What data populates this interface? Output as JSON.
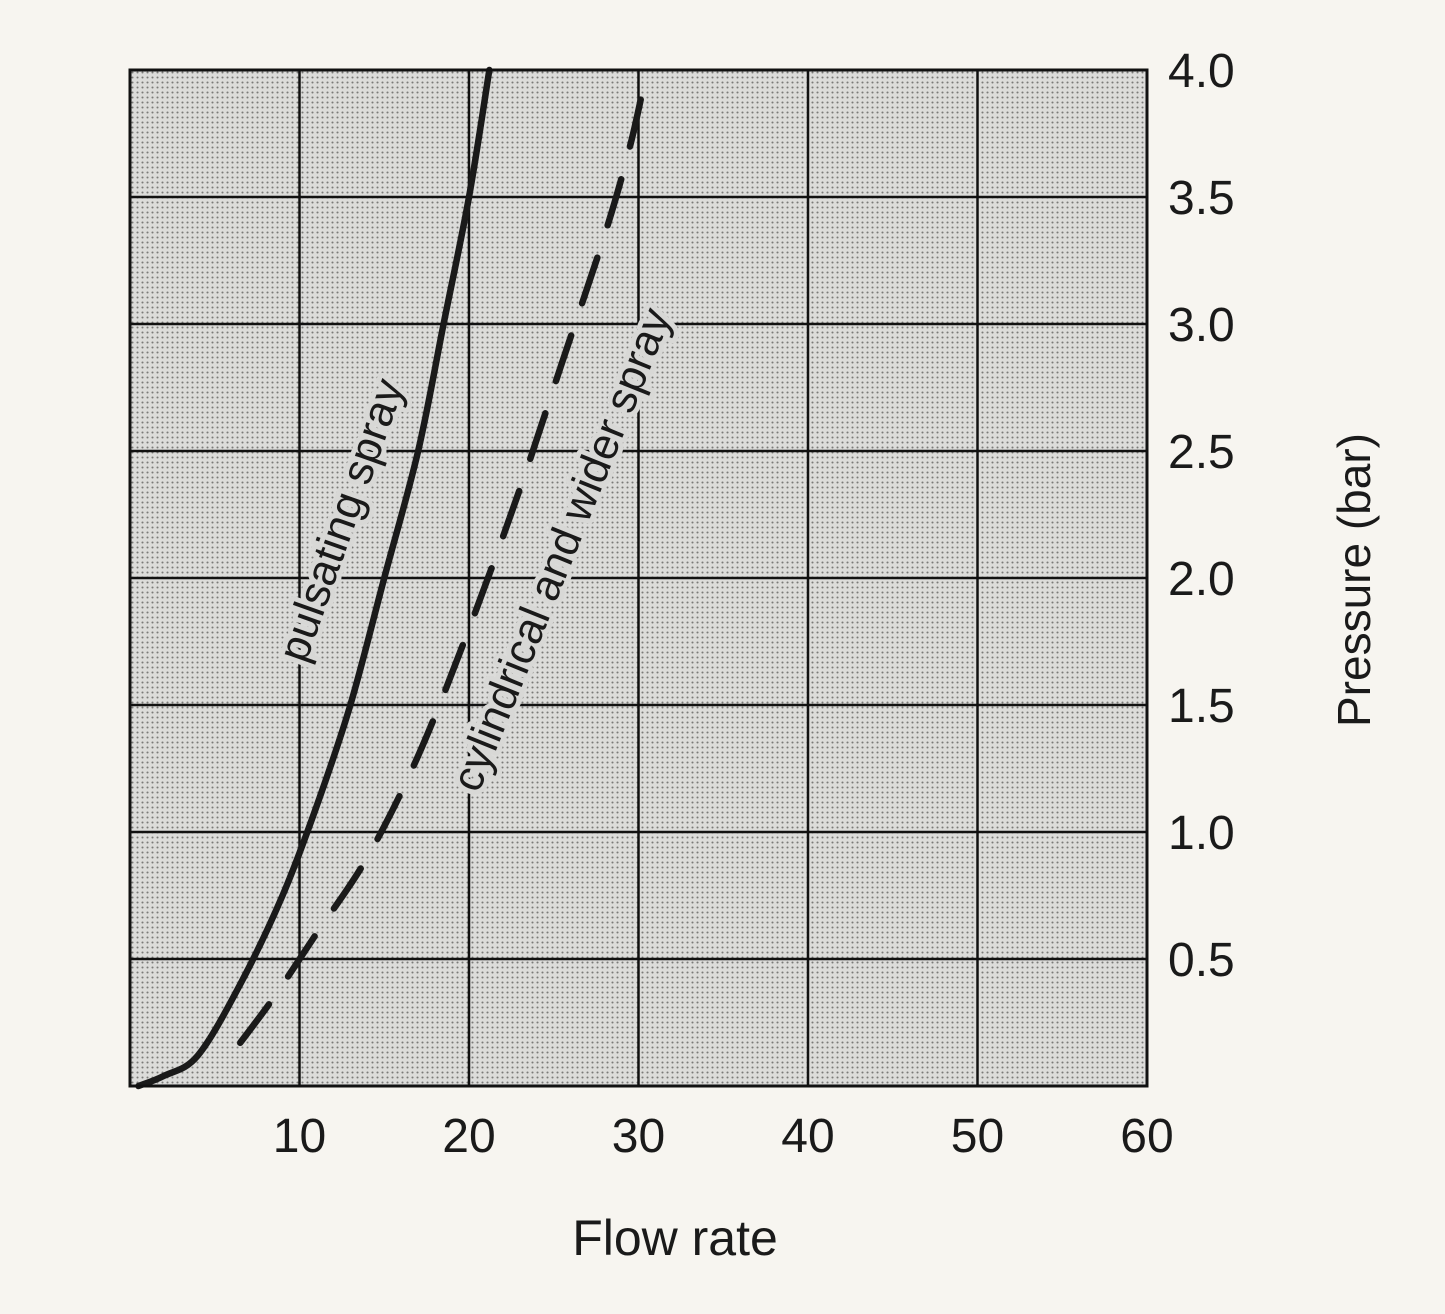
{
  "chart_data": {
    "type": "line",
    "xlabel": "Flow rate",
    "ylabel": "Pressure (bar)",
    "xlim": [
      0,
      60
    ],
    "ylim": [
      0,
      4.0
    ],
    "x_ticks": [
      10,
      20,
      30,
      40,
      50,
      60
    ],
    "x_tick_labels": [
      "10",
      "20",
      "30",
      "40",
      "50",
      "60"
    ],
    "y_ticks": [
      0.5,
      1.0,
      1.5,
      2.0,
      2.5,
      3.0,
      3.5,
      4.0
    ],
    "y_tick_labels": [
      "0.5",
      "1.0",
      "1.5",
      "2.0",
      "2.5",
      "3.0",
      "3.5",
      "4.0"
    ],
    "y_axis_side": "right",
    "grid": true,
    "legend": "none",
    "series": [
      {
        "name": "pulsating spray",
        "style": "solid",
        "x": [
          0.5,
          2,
          4,
          6.5,
          9,
          11,
          13,
          15,
          17,
          18.5,
          20,
          21.2
        ],
        "y": [
          0.0,
          0.04,
          0.12,
          0.4,
          0.75,
          1.1,
          1.5,
          2.0,
          2.5,
          3.0,
          3.5,
          4.0
        ]
      },
      {
        "name": "cylindrical and wider spray",
        "style": "dashed",
        "x": [
          6.5,
          8.5,
          11,
          14,
          17,
          20,
          23,
          25.5,
          28,
          29.5,
          30.5
        ],
        "y": [
          0.17,
          0.35,
          0.6,
          0.9,
          1.3,
          1.8,
          2.35,
          2.85,
          3.35,
          3.7,
          4.0
        ]
      }
    ],
    "annotations": [
      "pulsating spray",
      "cylindrical and wider spray"
    ],
    "colors": {
      "line": "#1a1a1a",
      "plot_bg": "#c9c9c7",
      "grid": "#111111",
      "paper": "#f7f5f0"
    }
  }
}
